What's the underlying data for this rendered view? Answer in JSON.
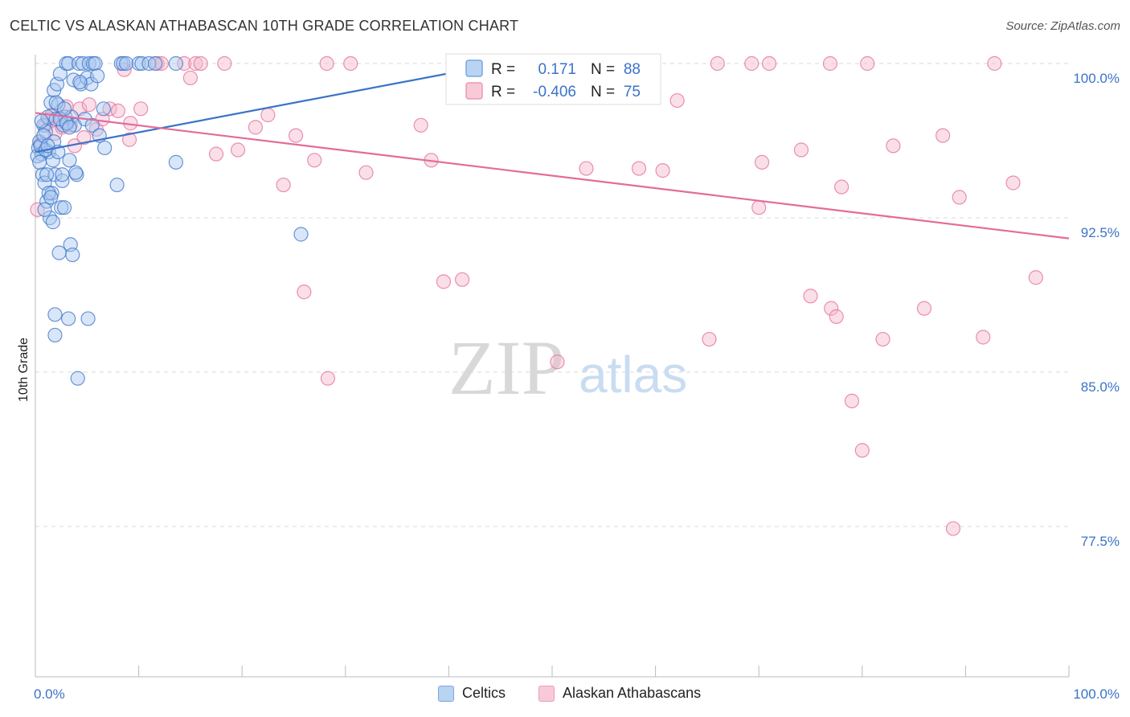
{
  "title": "CELTIC VS ALASKAN ATHABASCAN 10TH GRADE CORRELATION CHART",
  "source": "Source: ZipAtlas.com",
  "watermark": {
    "zip": "ZIP",
    "atlas": "atlas"
  },
  "colors": {
    "blue": "#3b73c8",
    "blue_fill": "#a9c8f0",
    "pink": "#e36c9a",
    "pink_fill": "#f5b8cc",
    "grid": "#d9d9d9",
    "axis_text": "#3b73c8"
  },
  "legend": {
    "r_label": "R =",
    "n_label": "N =",
    "rows": [
      {
        "series": "Celtics",
        "r": "0.171",
        "n": "88"
      },
      {
        "series": "Alaskan Athabascans",
        "r": "-0.406",
        "n": "75"
      }
    ]
  },
  "bottom_legend": [
    "Celtics",
    "Alaskan Athabascans"
  ],
  "chart_data": {
    "type": "scatter",
    "title": "CELTIC VS ALASKAN ATHABASCAN 10TH GRADE CORRELATION CHART",
    "xlabel": "",
    "ylabel": "10th Grade",
    "xlim": [
      0,
      100
    ],
    "ylim": [
      70.0,
      100.5
    ],
    "x_tick_labels": [
      "0.0%",
      "100.0%"
    ],
    "y_ticks": [
      100.0,
      92.5,
      85.0,
      77.5
    ],
    "y_tick_labels": [
      "100.0%",
      "92.5%",
      "85.0%",
      "77.5%"
    ],
    "series": [
      {
        "name": "Celtics",
        "r": 0.171,
        "n": 88,
        "trend": {
          "x": [
            0,
            45
          ],
          "y": [
            95.7,
            100.0
          ]
        },
        "points": [
          [
            0.3,
            95.9
          ],
          [
            0.4,
            96.2
          ],
          [
            0.6,
            95.6
          ],
          [
            0.7,
            94.6
          ],
          [
            0.8,
            97.0
          ],
          [
            0.9,
            94.2
          ],
          [
            1.0,
            96.7
          ],
          [
            1.1,
            93.3
          ],
          [
            1.2,
            97.4
          ],
          [
            1.3,
            95.7
          ],
          [
            1.4,
            92.5
          ],
          [
            1.5,
            98.1
          ],
          [
            1.6,
            93.7
          ],
          [
            1.7,
            95.3
          ],
          [
            1.8,
            98.7
          ],
          [
            1.9,
            94.6
          ],
          [
            2.0,
            97.3
          ],
          [
            2.1,
            99.0
          ],
          [
            2.2,
            98.0
          ],
          [
            2.3,
            90.8
          ],
          [
            2.4,
            99.5
          ],
          [
            2.5,
            93.0
          ],
          [
            2.6,
            94.3
          ],
          [
            2.7,
            97.0
          ],
          [
            2.8,
            93.0
          ],
          [
            2.9,
            97.4
          ],
          [
            3.0,
            100.0
          ],
          [
            3.1,
            97.1
          ],
          [
            3.2,
            100.0
          ],
          [
            3.3,
            95.3
          ],
          [
            3.4,
            91.2
          ],
          [
            3.5,
            97.4
          ],
          [
            3.6,
            90.7
          ],
          [
            3.7,
            99.2
          ],
          [
            3.8,
            97.0
          ],
          [
            4.0,
            94.6
          ],
          [
            4.2,
            100.0
          ],
          [
            4.4,
            99.0
          ],
          [
            4.6,
            100.0
          ],
          [
            4.8,
            97.3
          ],
          [
            5.0,
            99.3
          ],
          [
            5.2,
            100.0
          ],
          [
            5.4,
            99.0
          ],
          [
            5.6,
            100.0
          ],
          [
            5.8,
            100.0
          ],
          [
            6.0,
            99.4
          ],
          [
            1.9,
            87.8
          ],
          [
            3.2,
            87.6
          ],
          [
            5.1,
            87.6
          ],
          [
            1.9,
            86.8
          ],
          [
            4.1,
            84.7
          ],
          [
            6.6,
            97.8
          ],
          [
            6.7,
            95.9
          ],
          [
            7.9,
            94.1
          ],
          [
            8.3,
            100.0
          ],
          [
            8.5,
            100.0
          ],
          [
            8.8,
            100.0
          ],
          [
            10.0,
            100.0
          ],
          [
            10.3,
            100.0
          ],
          [
            11.0,
            100.0
          ],
          [
            11.6,
            100.0
          ],
          [
            13.6,
            100.0
          ],
          [
            0.2,
            95.5
          ],
          [
            0.5,
            96.0
          ],
          [
            0.6,
            97.2
          ],
          [
            0.8,
            96.5
          ],
          [
            0.9,
            92.9
          ],
          [
            1.0,
            95.8
          ],
          [
            1.1,
            94.6
          ],
          [
            1.3,
            93.7
          ],
          [
            1.5,
            93.5
          ],
          [
            1.7,
            92.3
          ],
          [
            1.8,
            96.2
          ],
          [
            2.0,
            98.1
          ],
          [
            2.4,
            97.3
          ],
          [
            2.6,
            94.6
          ],
          [
            2.8,
            97.8
          ],
          [
            3.0,
            97.1
          ],
          [
            3.3,
            96.9
          ],
          [
            3.9,
            94.7
          ],
          [
            4.3,
            99.1
          ],
          [
            5.5,
            97.0
          ],
          [
            6.2,
            96.5
          ],
          [
            13.6,
            95.2
          ],
          [
            25.7,
            91.7
          ],
          [
            0.4,
            95.2
          ],
          [
            1.2,
            96.0
          ],
          [
            2.2,
            95.7
          ]
        ]
      },
      {
        "name": "Alaskan Athabascans",
        "r": -0.406,
        "n": 75,
        "trend": {
          "x": [
            0,
            100
          ],
          "y": [
            97.6,
            91.5
          ]
        },
        "points": [
          [
            0.2,
            92.9
          ],
          [
            0.5,
            96.1
          ],
          [
            1.0,
            97.0
          ],
          [
            1.3,
            97.3
          ],
          [
            1.6,
            97.5
          ],
          [
            1.9,
            96.6
          ],
          [
            2.3,
            97.3
          ],
          [
            2.6,
            96.9
          ],
          [
            3.0,
            97.9
          ],
          [
            3.4,
            97.0
          ],
          [
            3.8,
            96.0
          ],
          [
            4.3,
            97.8
          ],
          [
            4.7,
            96.4
          ],
          [
            5.2,
            98.0
          ],
          [
            5.9,
            96.8
          ],
          [
            6.5,
            97.3
          ],
          [
            7.2,
            97.8
          ],
          [
            8.0,
            97.7
          ],
          [
            8.6,
            99.7
          ],
          [
            9.1,
            96.3
          ],
          [
            9.2,
            97.1
          ],
          [
            10.2,
            97.8
          ],
          [
            11.8,
            100.0
          ],
          [
            12.2,
            100.0
          ],
          [
            14.4,
            100.0
          ],
          [
            15.0,
            99.3
          ],
          [
            15.5,
            100.0
          ],
          [
            16.0,
            100.0
          ],
          [
            17.5,
            95.6
          ],
          [
            18.3,
            100.0
          ],
          [
            19.6,
            95.8
          ],
          [
            21.3,
            96.9
          ],
          [
            22.5,
            97.5
          ],
          [
            24.0,
            94.1
          ],
          [
            25.2,
            96.5
          ],
          [
            26.0,
            88.9
          ],
          [
            27.0,
            95.3
          ],
          [
            28.2,
            100.0
          ],
          [
            28.3,
            84.7
          ],
          [
            30.5,
            100.0
          ],
          [
            32.0,
            94.7
          ],
          [
            37.3,
            97.0
          ],
          [
            38.3,
            95.3
          ],
          [
            39.5,
            89.4
          ],
          [
            41.3,
            89.5
          ],
          [
            50.5,
            85.5
          ],
          [
            53.3,
            94.9
          ],
          [
            58.4,
            94.9
          ],
          [
            60.7,
            94.8
          ],
          [
            62.1,
            98.2
          ],
          [
            65.2,
            86.6
          ],
          [
            66.0,
            100.0
          ],
          [
            69.3,
            100.0
          ],
          [
            70.0,
            93.0
          ],
          [
            70.3,
            95.2
          ],
          [
            71.0,
            100.0
          ],
          [
            74.1,
            95.8
          ],
          [
            75.0,
            88.7
          ],
          [
            76.9,
            100.0
          ],
          [
            77.0,
            88.1
          ],
          [
            77.5,
            87.7
          ],
          [
            78.0,
            94.0
          ],
          [
            79.0,
            83.6
          ],
          [
            80.0,
            81.2
          ],
          [
            80.5,
            100.0
          ],
          [
            82.0,
            86.6
          ],
          [
            83.0,
            96.0
          ],
          [
            86.0,
            88.1
          ],
          [
            87.8,
            96.5
          ],
          [
            88.8,
            77.4
          ],
          [
            89.4,
            93.5
          ],
          [
            91.7,
            86.7
          ],
          [
            92.8,
            100.0
          ],
          [
            94.6,
            94.2
          ],
          [
            96.8,
            89.6
          ]
        ]
      }
    ]
  }
}
